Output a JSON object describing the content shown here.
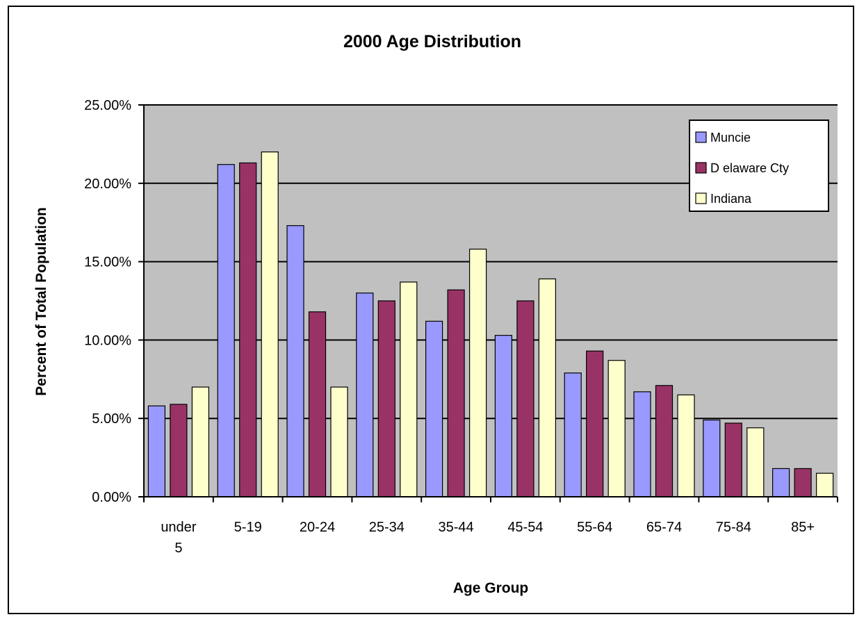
{
  "chart_data": {
    "type": "bar",
    "title": "2000 Age Distribution",
    "xlabel": "Age Group",
    "ylabel": "Percent of Total Population",
    "categories": [
      [
        "under",
        "5"
      ],
      [
        "5-19"
      ],
      [
        "20-24"
      ],
      [
        "25-34"
      ],
      [
        "35-44"
      ],
      [
        "45-54"
      ],
      [
        "55-64"
      ],
      [
        "65-74"
      ],
      [
        "75-84"
      ],
      [
        "85+"
      ]
    ],
    "series": [
      {
        "name": "Muncie",
        "color": "#9999ff",
        "values": [
          5.8,
          21.2,
          17.3,
          13.0,
          11.2,
          10.3,
          7.9,
          6.7,
          4.9,
          1.8
        ]
      },
      {
        "name": "D elaware Cty",
        "color": "#993366",
        "values": [
          5.9,
          21.3,
          11.8,
          12.5,
          13.2,
          12.5,
          9.3,
          7.1,
          4.7,
          1.8
        ]
      },
      {
        "name": "Indiana",
        "color": "#ffffcc",
        "values": [
          7.0,
          22.0,
          7.0,
          13.7,
          15.8,
          13.9,
          8.7,
          6.5,
          4.4,
          1.5
        ]
      }
    ],
    "ylim": [
      0,
      25
    ],
    "yticks": [
      0,
      5,
      10,
      15,
      20,
      25
    ],
    "ytick_labels": [
      "0.00%",
      "5.00%",
      "10.00%",
      "15.00%",
      "20.00%",
      "25.00%"
    ],
    "grid": true,
    "plot_background": "#c0c0c0",
    "legend_position": "top-right"
  }
}
